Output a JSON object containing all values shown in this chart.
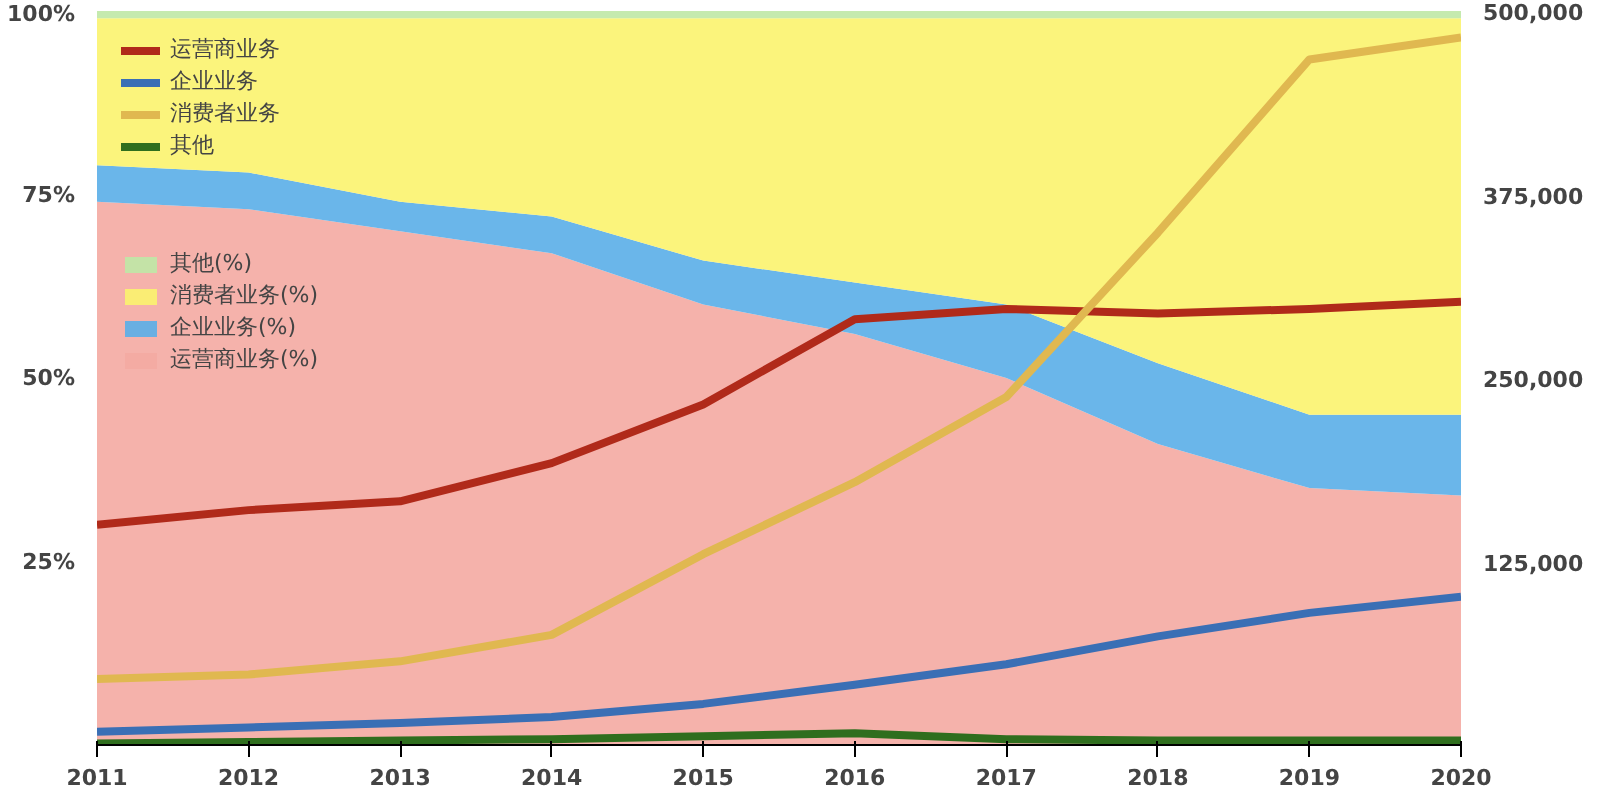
{
  "chart_data": {
    "type": "area",
    "stacked": true,
    "legend": "top left",
    "grid": false,
    "x": [
      2011,
      2012,
      2013,
      2014,
      2015,
      2016,
      2017,
      2018,
      2019,
      2020
    ],
    "xlim": [
      2011,
      2020
    ],
    "xticks": [
      2011,
      2012,
      2013,
      2014,
      2015,
      2016,
      2017,
      2018,
      2019,
      2020
    ],
    "ylim": [
      0,
      100
    ],
    "yticks": [
      {
        "value": 25,
        "label": "25%"
      },
      {
        "value": 50,
        "label": "50%"
      },
      {
        "value": 75,
        "label": "75%"
      },
      {
        "value": 100,
        "label": "100%"
      }
    ],
    "y2lim": [
      0,
      500000
    ],
    "y2ticks": [
      {
        "value": 125000,
        "label": "125,000"
      },
      {
        "value": 250000,
        "label": "250,000"
      },
      {
        "value": 375000,
        "label": "375,000"
      },
      {
        "value": 500000,
        "label": "500,000"
      }
    ],
    "series": [
      {
        "name": "运营商业务",
        "type": "line",
        "axis": "y2",
        "color": "#b02a1a",
        "values": [
          150000,
          160000,
          166000,
          192000,
          232000,
          290000,
          297000,
          294000,
          297000,
          302000
        ]
      },
      {
        "name": "企业业务",
        "type": "line",
        "axis": "y2",
        "color": "#3a6fb5",
        "values": [
          9000,
          12000,
          15000,
          19000,
          28000,
          41000,
          55000,
          74000,
          90000,
          101000
        ]
      },
      {
        "name": "消费者业务",
        "type": "line",
        "axis": "y2",
        "color": "#e0b850",
        "values": [
          45000,
          48000,
          57000,
          75000,
          130000,
          179000,
          237000,
          349000,
          467000,
          482000
        ]
      },
      {
        "name": "其他",
        "type": "line",
        "axis": "y2",
        "color": "#2f6e1e",
        "values": [
          1000,
          2000,
          3000,
          4000,
          6000,
          8000,
          4000,
          3000,
          3000,
          3000
        ]
      },
      {
        "name": "运营商业务(%)",
        "color": "#f4aaa2",
        "values": [
          74,
          73,
          70,
          67,
          60,
          56,
          50,
          41,
          35,
          34
        ]
      },
      {
        "name": "企业业务(%)",
        "color": "#5aaee8",
        "values": [
          5,
          5,
          4,
          5,
          6,
          7,
          10,
          11,
          10,
          11
        ]
      },
      {
        "name": "消费者业务(%)",
        "color": "#fbf36e",
        "values": [
          20,
          21,
          25,
          27,
          33,
          36,
          39,
          47,
          54,
          54
        ]
      },
      {
        "name": "其他(%)",
        "color": "#bfe8a6",
        "values": [
          1,
          1,
          1,
          1,
          1,
          1,
          1,
          1,
          1,
          1
        ]
      }
    ]
  }
}
